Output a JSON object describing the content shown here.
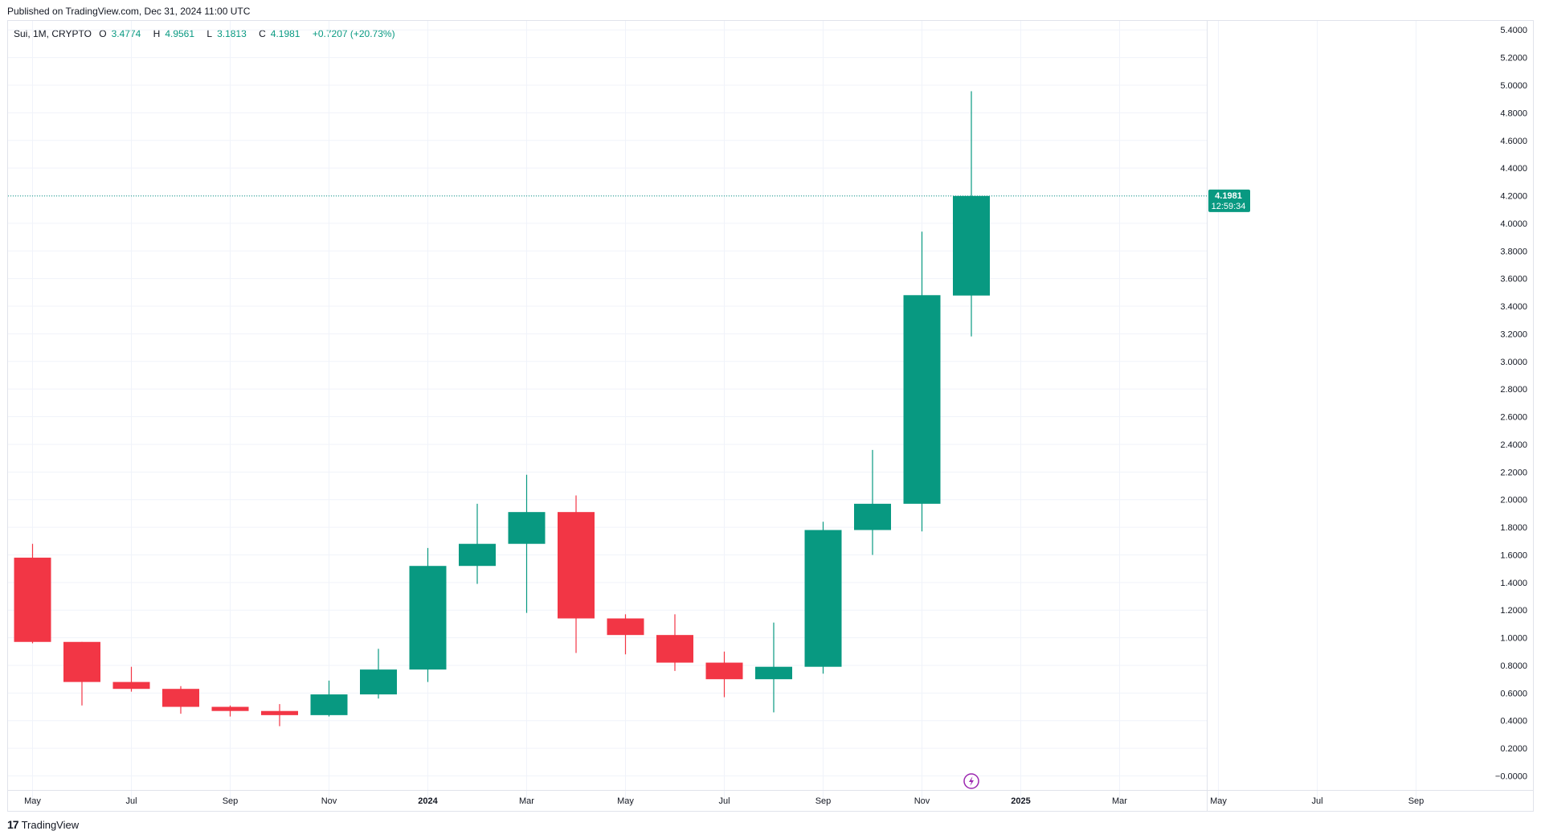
{
  "header": {
    "published": "Published on TradingView.com, Dec 31, 2024 11:00 UTC"
  },
  "legend": {
    "symbol": "Sui, 1M, CRYPTO",
    "open_label": "O",
    "open": "3.4774",
    "high_label": "H",
    "high": "4.9561",
    "low_label": "L",
    "low": "3.1813",
    "close_label": "C",
    "close": "4.1981",
    "change": "+0.7207 (+20.73%)"
  },
  "price_tag": {
    "price": "4.1981",
    "countdown": "12:59:34"
  },
  "footer": {
    "brand": "TradingView",
    "logo_glyph": "17"
  },
  "colors": {
    "up": "#089981",
    "down": "#f23645",
    "grid": "#f0f3fa",
    "text": "#131722"
  },
  "icons": {
    "event_marker": "lightning-icon"
  },
  "chart_data": {
    "type": "candlestick",
    "title": "",
    "xlabel": "",
    "ylabel": "",
    "ylim": [
      0.0,
      5.4
    ],
    "y_ticks": [
      "5.4000",
      "5.2000",
      "5.0000",
      "4.8000",
      "4.6000",
      "4.4000",
      "4.2000",
      "4.0000",
      "3.8000",
      "3.6000",
      "3.4000",
      "3.2000",
      "3.0000",
      "2.8000",
      "2.6000",
      "2.4000",
      "2.2000",
      "2.0000",
      "1.8000",
      "1.6000",
      "1.4000",
      "1.2000",
      "1.0000",
      "0.8000",
      "0.6000",
      "0.4000",
      "0.2000",
      "−0.0000"
    ],
    "x_ticks": [
      {
        "label": "May",
        "month": "2023-05",
        "bold": false
      },
      {
        "label": "Jul",
        "month": "2023-07",
        "bold": false
      },
      {
        "label": "Sep",
        "month": "2023-09",
        "bold": false
      },
      {
        "label": "Nov",
        "month": "2023-11",
        "bold": false
      },
      {
        "label": "2024",
        "month": "2024-01",
        "bold": true
      },
      {
        "label": "Mar",
        "month": "2024-03",
        "bold": false
      },
      {
        "label": "May",
        "month": "2024-05",
        "bold": false
      },
      {
        "label": "Jul",
        "month": "2024-07",
        "bold": false
      },
      {
        "label": "Sep",
        "month": "2024-09",
        "bold": false
      },
      {
        "label": "Nov",
        "month": "2024-11",
        "bold": false
      },
      {
        "label": "2025",
        "month": "2025-01",
        "bold": true
      },
      {
        "label": "Mar",
        "month": "2025-03",
        "bold": false
      },
      {
        "label": "May",
        "month": "2025-05",
        "bold": false
      },
      {
        "label": "Jul",
        "month": "2025-07",
        "bold": false
      },
      {
        "label": "Sep",
        "month": "2025-09",
        "bold": false
      }
    ],
    "candles": [
      {
        "month": "2023-05",
        "open": 1.58,
        "high": 1.68,
        "low": 0.96,
        "close": 0.97
      },
      {
        "month": "2023-06",
        "open": 0.97,
        "high": 0.97,
        "low": 0.51,
        "close": 0.68
      },
      {
        "month": "2023-07",
        "open": 0.68,
        "high": 0.79,
        "low": 0.61,
        "close": 0.63
      },
      {
        "month": "2023-08",
        "open": 0.63,
        "high": 0.65,
        "low": 0.45,
        "close": 0.5
      },
      {
        "month": "2023-09",
        "open": 0.5,
        "high": 0.51,
        "low": 0.43,
        "close": 0.47
      },
      {
        "month": "2023-10",
        "open": 0.47,
        "high": 0.52,
        "low": 0.36,
        "close": 0.44
      },
      {
        "month": "2023-11",
        "open": 0.44,
        "high": 0.69,
        "low": 0.43,
        "close": 0.59
      },
      {
        "month": "2023-12",
        "open": 0.59,
        "high": 0.92,
        "low": 0.56,
        "close": 0.77
      },
      {
        "month": "2024-01",
        "open": 0.77,
        "high": 1.65,
        "low": 0.68,
        "close": 1.52
      },
      {
        "month": "2024-02",
        "open": 1.52,
        "high": 1.97,
        "low": 1.39,
        "close": 1.68
      },
      {
        "month": "2024-03",
        "open": 1.68,
        "high": 2.18,
        "low": 1.18,
        "close": 1.91
      },
      {
        "month": "2024-04",
        "open": 1.91,
        "high": 2.03,
        "low": 0.89,
        "close": 1.14
      },
      {
        "month": "2024-05",
        "open": 1.14,
        "high": 1.17,
        "low": 0.88,
        "close": 1.02
      },
      {
        "month": "2024-06",
        "open": 1.02,
        "high": 1.17,
        "low": 0.76,
        "close": 0.82
      },
      {
        "month": "2024-07",
        "open": 0.82,
        "high": 0.9,
        "low": 0.57,
        "close": 0.7
      },
      {
        "month": "2024-08",
        "open": 0.7,
        "high": 1.11,
        "low": 0.46,
        "close": 0.79
      },
      {
        "month": "2024-09",
        "open": 0.79,
        "high": 1.84,
        "low": 0.74,
        "close": 1.78
      },
      {
        "month": "2024-10",
        "open": 1.78,
        "high": 2.36,
        "low": 1.6,
        "close": 1.97
      },
      {
        "month": "2024-11",
        "open": 1.97,
        "high": 3.94,
        "low": 1.77,
        "close": 3.48
      },
      {
        "month": "2024-12",
        "open": 3.4774,
        "high": 4.9561,
        "low": 3.1813,
        "close": 4.1981
      }
    ],
    "last_price": 4.1981,
    "event_marker_month": "2024-12",
    "grid": true
  }
}
